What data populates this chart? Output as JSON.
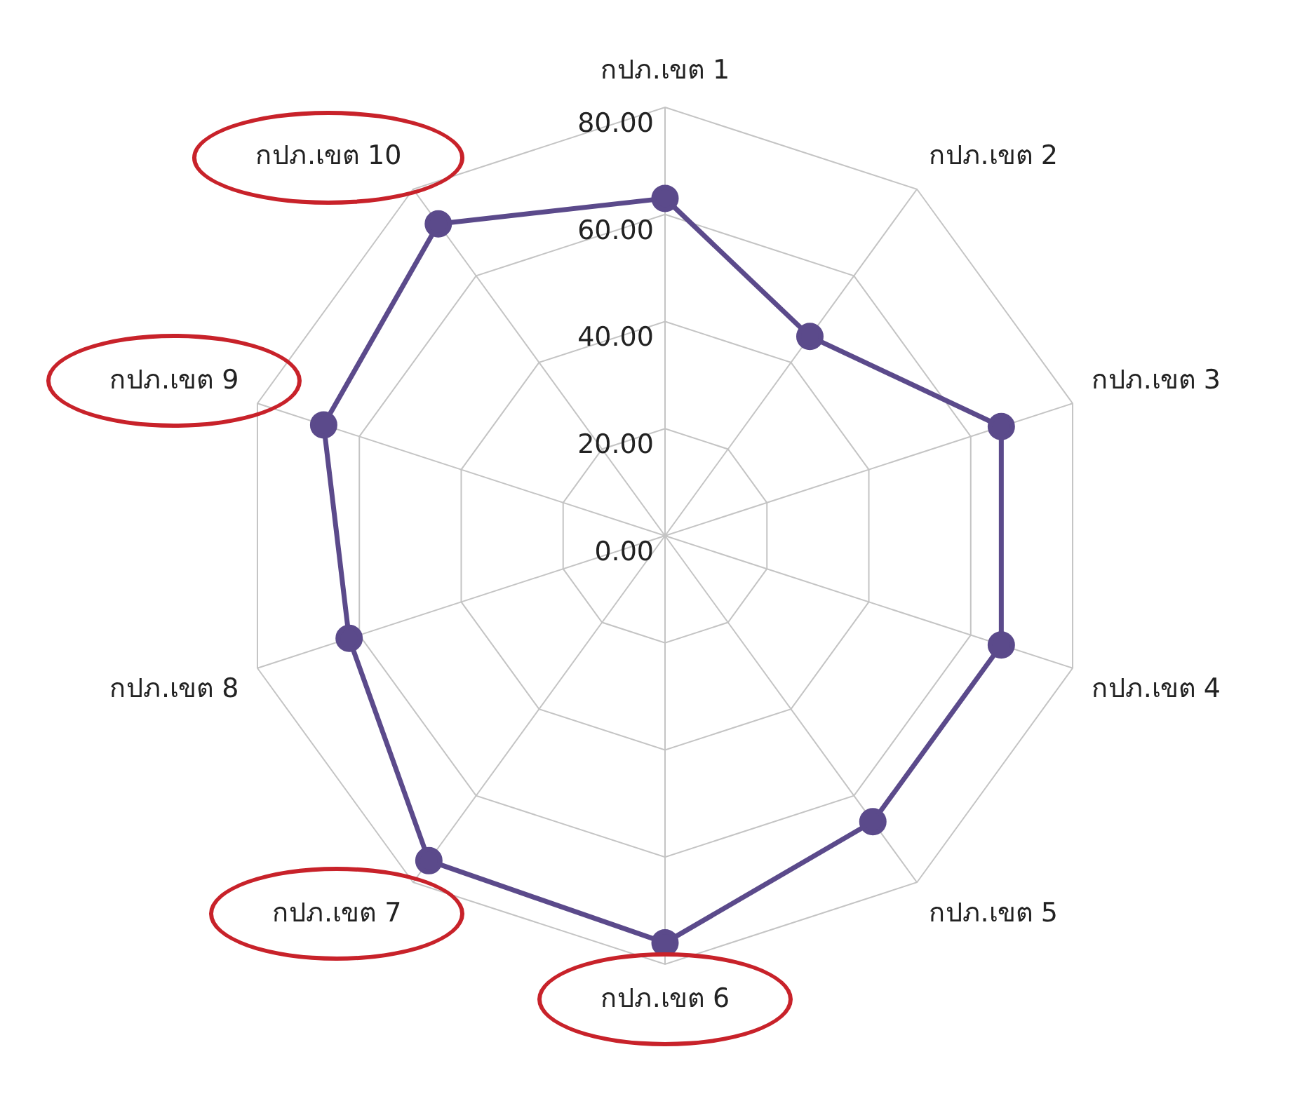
{
  "chart_data": {
    "type": "radar",
    "categories": [
      "กปภ.เขต 1",
      "กปภ.เขต 2",
      "กปภ.เขต 3",
      "กปภ.เขต 4",
      "กปภ.เขต 5",
      "กปภ.เขต 6",
      "กปภ.เขต 7",
      "กปภ.เขต 8",
      "กปภ.เขต 9",
      "กปภ.เขต 10"
    ],
    "series": [
      {
        "color": "#5b4a8b",
        "values": [
          63,
          46,
          66,
          66,
          66,
          76,
          75,
          62,
          67,
          72
        ]
      }
    ],
    "ylim": [
      0,
      80
    ],
    "yticks": [
      {
        "value": 0,
        "label": "0.00"
      },
      {
        "value": 20,
        "label": "20.00"
      },
      {
        "value": 40,
        "label": "40.00"
      },
      {
        "value": 60,
        "label": "60.00"
      },
      {
        "value": 80,
        "label": "80.00"
      }
    ],
    "grid": true,
    "marker": "circle",
    "line_style": "solid",
    "legend": false
  }
}
